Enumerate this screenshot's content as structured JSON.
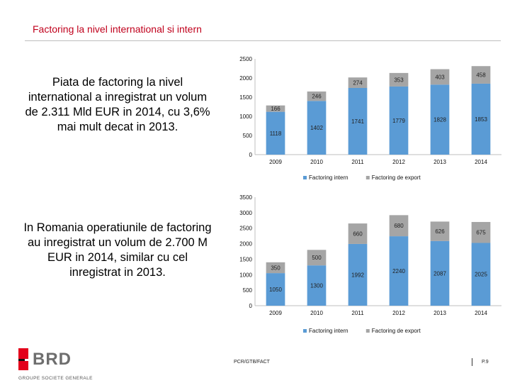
{
  "slide": {
    "title": "Factoring la nivel international si intern",
    "text1": "Piata de factoring la nivel international a inregistrat un volum de 2.311 Mld EUR in 2014, cu 3,6% mai mult decat in 2013.",
    "text2": "In Romania operatiunile de factoring au inregistrat un volum de 2.700 M EUR in 2014, similar cu cel inregistrat in 2013."
  },
  "colors": {
    "title": "#c0001c",
    "series_intern": "#5a9bd5",
    "series_export": "#a5a5a5"
  },
  "chart_data": [
    {
      "type": "bar",
      "stacked": true,
      "categories": [
        "2009",
        "2010",
        "2011",
        "2012",
        "2013",
        "2014"
      ],
      "series": [
        {
          "name": "Factoring intern",
          "values": [
            1118,
            1402,
            1741,
            1779,
            1828,
            1853
          ]
        },
        {
          "name": "Factoring de export",
          "values": [
            166,
            246,
            274,
            353,
            403,
            458
          ]
        }
      ],
      "yticks": [
        0,
        500,
        1000,
        1500,
        2000,
        2500
      ],
      "ylim": [
        0,
        2500
      ],
      "legend": "bottom"
    },
    {
      "type": "bar",
      "stacked": true,
      "categories": [
        "2009",
        "2010",
        "2011",
        "2012",
        "2013",
        "2014"
      ],
      "series": [
        {
          "name": "Factoring intern",
          "values": [
            1050,
            1300,
            1992,
            2240,
            2087,
            2025
          ]
        },
        {
          "name": "Factoring de export",
          "values": [
            350,
            500,
            660,
            680,
            626,
            675
          ]
        }
      ],
      "yticks": [
        0,
        500,
        1000,
        1500,
        2000,
        2500,
        3000,
        3500
      ],
      "ylim": [
        0,
        3500
      ],
      "legend": "bottom"
    }
  ],
  "logo": {
    "name": "BRD",
    "subtitle": "GROUPE SOCIETE GENERALE"
  },
  "footer": {
    "code": "PCR/GTB/FACT",
    "page": "P.9"
  }
}
